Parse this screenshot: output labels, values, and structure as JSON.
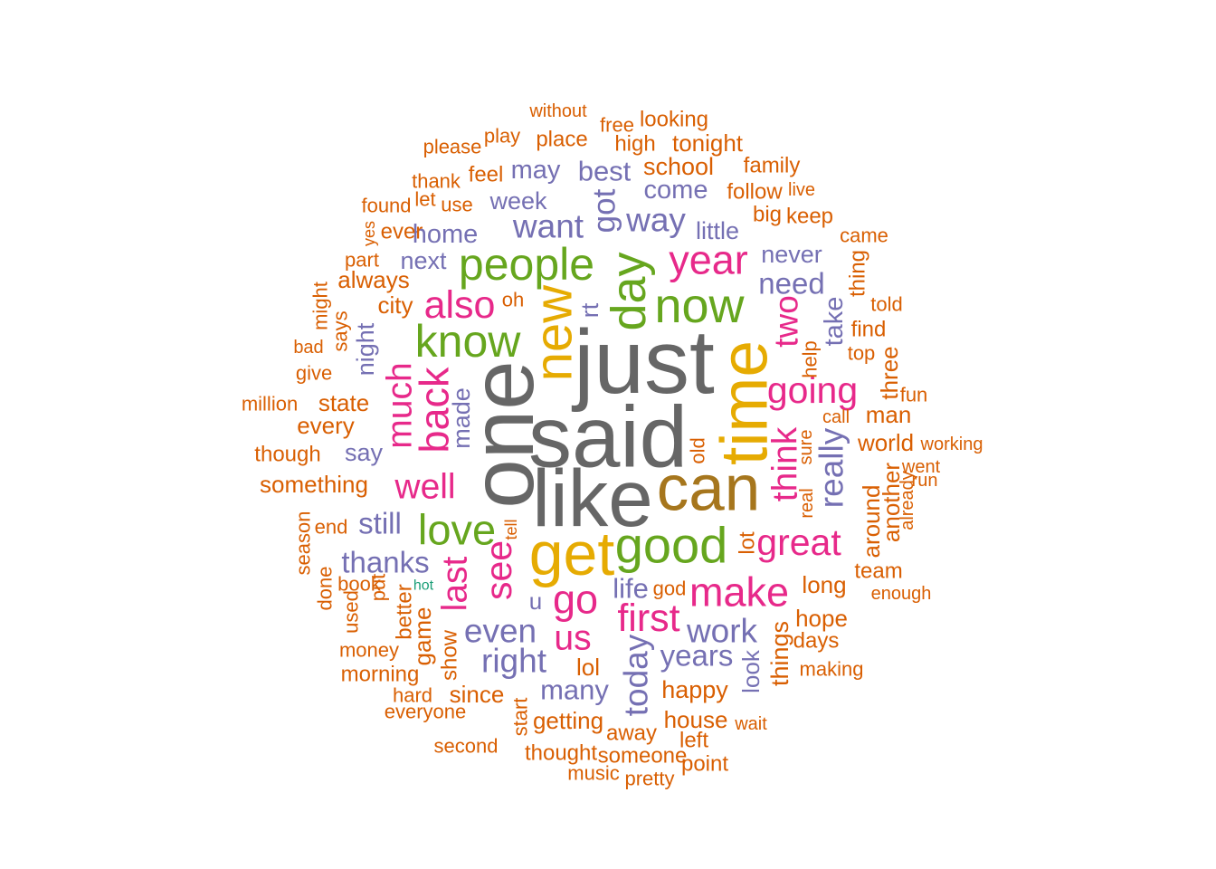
{
  "chart_data": {
    "type": "wordcloud",
    "palette": [
      "#1B9E77",
      "#D95F02",
      "#7570B3",
      "#E7298A",
      "#66A61E",
      "#E6AB02",
      "#A6761D",
      "#666666"
    ],
    "words": [
      {
        "text": "just",
        "value": 100,
        "color": "#666666",
        "rot": 0
      },
      {
        "text": "said",
        "value": 96,
        "color": "#666666",
        "rot": 0
      },
      {
        "text": "one",
        "value": 98,
        "color": "#666666",
        "rot": -90
      },
      {
        "text": "like",
        "value": 88,
        "color": "#666666",
        "rot": 0
      },
      {
        "text": "can",
        "value": 70,
        "color": "#A6761D",
        "rot": 0
      },
      {
        "text": "time",
        "value": 72,
        "color": "#E6AB02",
        "rot": -90
      },
      {
        "text": "get",
        "value": 66,
        "color": "#E6AB02",
        "rot": 0
      },
      {
        "text": "new",
        "value": 56,
        "color": "#E6AB02",
        "rot": -90
      },
      {
        "text": "good",
        "value": 54,
        "color": "#66A61E",
        "rot": 0
      },
      {
        "text": "day",
        "value": 52,
        "color": "#66A61E",
        "rot": -90
      },
      {
        "text": "now",
        "value": 52,
        "color": "#66A61E",
        "rot": 0
      },
      {
        "text": "people",
        "value": 48,
        "color": "#66A61E",
        "rot": 0
      },
      {
        "text": "know",
        "value": 48,
        "color": "#66A61E",
        "rot": 0
      },
      {
        "text": "love",
        "value": 44,
        "color": "#66A61E",
        "rot": 0
      },
      {
        "text": "year",
        "value": 42,
        "color": "#E7298A",
        "rot": 0
      },
      {
        "text": "back",
        "value": 42,
        "color": "#E7298A",
        "rot": -90
      },
      {
        "text": "also",
        "value": 40,
        "color": "#E7298A",
        "rot": 0
      },
      {
        "text": "make",
        "value": 42,
        "color": "#E7298A",
        "rot": 0
      },
      {
        "text": "go",
        "value": 42,
        "color": "#E7298A",
        "rot": 0
      },
      {
        "text": "first",
        "value": 40,
        "color": "#E7298A",
        "rot": 0
      },
      {
        "text": "great",
        "value": 38,
        "color": "#E7298A",
        "rot": 0
      },
      {
        "text": "going",
        "value": 38,
        "color": "#E7298A",
        "rot": 0
      },
      {
        "text": "much",
        "value": 36,
        "color": "#E7298A",
        "rot": -90
      },
      {
        "text": "see",
        "value": 38,
        "color": "#E7298A",
        "rot": -90
      },
      {
        "text": "us",
        "value": 36,
        "color": "#E7298A",
        "rot": 0
      },
      {
        "text": "think",
        "value": 36,
        "color": "#E7298A",
        "rot": -90
      },
      {
        "text": "two",
        "value": 34,
        "color": "#E7298A",
        "rot": -90
      },
      {
        "text": "well",
        "value": 36,
        "color": "#E7298A",
        "rot": 0
      },
      {
        "text": "last",
        "value": 36,
        "color": "#E7298A",
        "rot": -90
      },
      {
        "text": "want",
        "value": 34,
        "color": "#7570B3",
        "rot": 0
      },
      {
        "text": "way",
        "value": 34,
        "color": "#7570B3",
        "rot": 0
      },
      {
        "text": "got",
        "value": 32,
        "color": "#7570B3",
        "rot": -90
      },
      {
        "text": "really",
        "value": 34,
        "color": "#7570B3",
        "rot": -90
      },
      {
        "text": "right",
        "value": 34,
        "color": "#7570B3",
        "rot": 0
      },
      {
        "text": "even",
        "value": 34,
        "color": "#7570B3",
        "rot": 0
      },
      {
        "text": "work",
        "value": 34,
        "color": "#7570B3",
        "rot": 0
      },
      {
        "text": "today",
        "value": 34,
        "color": "#7570B3",
        "rot": -90
      },
      {
        "text": "years",
        "value": 30,
        "color": "#7570B3",
        "rot": 0
      },
      {
        "text": "still",
        "value": 30,
        "color": "#7570B3",
        "rot": 0
      },
      {
        "text": "thanks",
        "value": 30,
        "color": "#7570B3",
        "rot": 0
      },
      {
        "text": "many",
        "value": 28,
        "color": "#7570B3",
        "rot": 0
      },
      {
        "text": "need",
        "value": 30,
        "color": "#7570B3",
        "rot": 0
      },
      {
        "text": "take",
        "value": 26,
        "color": "#7570B3",
        "rot": -90
      },
      {
        "text": "life",
        "value": 28,
        "color": "#7570B3",
        "rot": 0
      },
      {
        "text": "best",
        "value": 28,
        "color": "#7570B3",
        "rot": 0
      },
      {
        "text": "may",
        "value": 26,
        "color": "#7570B3",
        "rot": 0
      },
      {
        "text": "come",
        "value": 26,
        "color": "#7570B3",
        "rot": 0
      },
      {
        "text": "home",
        "value": 26,
        "color": "#7570B3",
        "rot": 0
      },
      {
        "text": "week",
        "value": 24,
        "color": "#7570B3",
        "rot": 0
      },
      {
        "text": "never",
        "value": 24,
        "color": "#7570B3",
        "rot": 0
      },
      {
        "text": "made",
        "value": 24,
        "color": "#7570B3",
        "rot": -90
      },
      {
        "text": "night",
        "value": 24,
        "color": "#7570B3",
        "rot": -90
      },
      {
        "text": "say",
        "value": 24,
        "color": "#7570B3",
        "rot": 0
      },
      {
        "text": "next",
        "value": 24,
        "color": "#7570B3",
        "rot": 0
      },
      {
        "text": "little",
        "value": 24,
        "color": "#7570B3",
        "rot": 0
      },
      {
        "text": "look",
        "value": 22,
        "color": "#7570B3",
        "rot": -90
      },
      {
        "text": "u",
        "value": 22,
        "color": "#7570B3",
        "rot": 0
      },
      {
        "text": "rt",
        "value": 24,
        "color": "#7570B3",
        "rot": -90
      },
      {
        "text": "school",
        "value": 24,
        "color": "#D95F02",
        "rot": 0
      },
      {
        "text": "things",
        "value": 24,
        "color": "#D95F02",
        "rot": -90
      },
      {
        "text": "happy",
        "value": 24,
        "color": "#D95F02",
        "rot": 0
      },
      {
        "text": "long",
        "value": 22,
        "color": "#D95F02",
        "rot": 0
      },
      {
        "text": "game",
        "value": 22,
        "color": "#D95F02",
        "rot": -90
      },
      {
        "text": "lol",
        "value": 22,
        "color": "#D95F02",
        "rot": 0
      },
      {
        "text": "something",
        "value": 22,
        "color": "#D95F02",
        "rot": 0
      },
      {
        "text": "always",
        "value": 22,
        "color": "#D95F02",
        "rot": 0
      },
      {
        "text": "city",
        "value": 22,
        "color": "#D95F02",
        "rot": 0
      },
      {
        "text": "state",
        "value": 22,
        "color": "#D95F02",
        "rot": 0
      },
      {
        "text": "every",
        "value": 22,
        "color": "#D95F02",
        "rot": 0
      },
      {
        "text": "hope",
        "value": 22,
        "color": "#D95F02",
        "rot": 0
      },
      {
        "text": "world",
        "value": 22,
        "color": "#D95F02",
        "rot": 0
      },
      {
        "text": "around",
        "value": 22,
        "color": "#D95F02",
        "rot": -90
      },
      {
        "text": "another",
        "value": 22,
        "color": "#D95F02",
        "rot": -90
      },
      {
        "text": "three",
        "value": 22,
        "color": "#D95F02",
        "rot": -90
      },
      {
        "text": "man",
        "value": 22,
        "color": "#D95F02",
        "rot": 0
      },
      {
        "text": "team",
        "value": 20,
        "color": "#D95F02",
        "rot": 0
      },
      {
        "text": "getting",
        "value": 22,
        "color": "#D95F02",
        "rot": 0
      },
      {
        "text": "house",
        "value": 22,
        "color": "#D95F02",
        "rot": 0
      },
      {
        "text": "since",
        "value": 22,
        "color": "#D95F02",
        "rot": 0
      },
      {
        "text": "show",
        "value": 20,
        "color": "#D95F02",
        "rot": -90
      },
      {
        "text": "better",
        "value": 20,
        "color": "#D95F02",
        "rot": -90
      },
      {
        "text": "feel",
        "value": 20,
        "color": "#D95F02",
        "rot": 0
      },
      {
        "text": "family",
        "value": 20,
        "color": "#D95F02",
        "rot": 0
      },
      {
        "text": "follow",
        "value": 20,
        "color": "#D95F02",
        "rot": 0
      },
      {
        "text": "big",
        "value": 20,
        "color": "#D95F02",
        "rot": 0
      },
      {
        "text": "keep",
        "value": 20,
        "color": "#D95F02",
        "rot": 0
      },
      {
        "text": "tonight",
        "value": 22,
        "color": "#D95F02",
        "rot": 0
      },
      {
        "text": "high",
        "value": 20,
        "color": "#D95F02",
        "rot": 0
      },
      {
        "text": "place",
        "value": 20,
        "color": "#D95F02",
        "rot": 0
      },
      {
        "text": "looking",
        "value": 20,
        "color": "#D95F02",
        "rot": 0
      },
      {
        "text": "thing",
        "value": 20,
        "color": "#D95F02",
        "rot": -90
      },
      {
        "text": "find",
        "value": 20,
        "color": "#D95F02",
        "rot": 0
      },
      {
        "text": "help",
        "value": 18,
        "color": "#D95F02",
        "rot": -90
      },
      {
        "text": "top",
        "value": 18,
        "color": "#D95F02",
        "rot": 0
      },
      {
        "text": "fun",
        "value": 18,
        "color": "#D95F02",
        "rot": 0
      },
      {
        "text": "told",
        "value": 18,
        "color": "#D95F02",
        "rot": 0
      },
      {
        "text": "morning",
        "value": 20,
        "color": "#D95F02",
        "rot": 0
      },
      {
        "text": "money",
        "value": 18,
        "color": "#D95F02",
        "rot": 0
      },
      {
        "text": "days",
        "value": 20,
        "color": "#D95F02",
        "rot": 0
      },
      {
        "text": "making",
        "value": 18,
        "color": "#D95F02",
        "rot": 0
      },
      {
        "text": "thought",
        "value": 20,
        "color": "#D95F02",
        "rot": 0
      },
      {
        "text": "someone",
        "value": 20,
        "color": "#D95F02",
        "rot": 0
      },
      {
        "text": "away",
        "value": 20,
        "color": "#D95F02",
        "rot": 0
      },
      {
        "text": "left",
        "value": 20,
        "color": "#D95F02",
        "rot": 0
      },
      {
        "text": "point",
        "value": 20,
        "color": "#D95F02",
        "rot": 0
      },
      {
        "text": "music",
        "value": 18,
        "color": "#D95F02",
        "rot": 0
      },
      {
        "text": "pretty",
        "value": 18,
        "color": "#D95F02",
        "rot": 0
      },
      {
        "text": "second",
        "value": 18,
        "color": "#D95F02",
        "rot": 0
      },
      {
        "text": "start",
        "value": 18,
        "color": "#D95F02",
        "rot": -90
      },
      {
        "text": "hard",
        "value": 18,
        "color": "#D95F02",
        "rot": 0
      },
      {
        "text": "everyone",
        "value": 18,
        "color": "#D95F02",
        "rot": 0
      },
      {
        "text": "god",
        "value": 18,
        "color": "#D95F02",
        "rot": 0
      },
      {
        "text": "old",
        "value": 18,
        "color": "#D95F02",
        "rot": -90
      },
      {
        "text": "lot",
        "value": 20,
        "color": "#D95F02",
        "rot": -90
      },
      {
        "text": "put",
        "value": 18,
        "color": "#D95F02",
        "rot": -90
      },
      {
        "text": "book",
        "value": 18,
        "color": "#D95F02",
        "rot": 0
      },
      {
        "text": "done",
        "value": 18,
        "color": "#D95F02",
        "rot": -90
      },
      {
        "text": "used",
        "value": 18,
        "color": "#D95F02",
        "rot": -90
      },
      {
        "text": "end",
        "value": 18,
        "color": "#D95F02",
        "rot": 0
      },
      {
        "text": "season",
        "value": 18,
        "color": "#D95F02",
        "rot": -90
      },
      {
        "text": "million",
        "value": 18,
        "color": "#D95F02",
        "rot": 0
      },
      {
        "text": "give",
        "value": 18,
        "color": "#D95F02",
        "rot": 0
      },
      {
        "text": "though",
        "value": 20,
        "color": "#D95F02",
        "rot": 0
      },
      {
        "text": "says",
        "value": 18,
        "color": "#D95F02",
        "rot": -90
      },
      {
        "text": "part",
        "value": 18,
        "color": "#D95F02",
        "rot": 0
      },
      {
        "text": "might",
        "value": 18,
        "color": "#D95F02",
        "rot": -90
      },
      {
        "text": "found",
        "value": 18,
        "color": "#D95F02",
        "rot": 0
      },
      {
        "text": "ever",
        "value": 20,
        "color": "#D95F02",
        "rot": 0
      },
      {
        "text": "use",
        "value": 18,
        "color": "#D95F02",
        "rot": 0
      },
      {
        "text": "thank",
        "value": 18,
        "color": "#D95F02",
        "rot": 0
      },
      {
        "text": "let",
        "value": 18,
        "color": "#D95F02",
        "rot": 0
      },
      {
        "text": "please",
        "value": 18,
        "color": "#D95F02",
        "rot": 0
      },
      {
        "text": "play",
        "value": 18,
        "color": "#D95F02",
        "rot": 0
      },
      {
        "text": "free",
        "value": 18,
        "color": "#D95F02",
        "rot": 0
      },
      {
        "text": "without",
        "value": 16,
        "color": "#D95F02",
        "rot": 0
      },
      {
        "text": "came",
        "value": 18,
        "color": "#D95F02",
        "rot": 0
      },
      {
        "text": "call",
        "value": 16,
        "color": "#D95F02",
        "rot": 0
      },
      {
        "text": "live",
        "value": 16,
        "color": "#D95F02",
        "rot": 0
      },
      {
        "text": "went",
        "value": 16,
        "color": "#D95F02",
        "rot": 0
      },
      {
        "text": "run",
        "value": 16,
        "color": "#D95F02",
        "rot": 0
      },
      {
        "text": "already",
        "value": 16,
        "color": "#D95F02",
        "rot": -90
      },
      {
        "text": "enough",
        "value": 16,
        "color": "#D95F02",
        "rot": 0
      },
      {
        "text": "working",
        "value": 16,
        "color": "#D95F02",
        "rot": 0
      },
      {
        "text": "oh",
        "value": 18,
        "color": "#D95F02",
        "rot": 0
      },
      {
        "text": "real",
        "value": 16,
        "color": "#D95F02",
        "rot": -90
      },
      {
        "text": "sure",
        "value": 16,
        "color": "#D95F02",
        "rot": -90
      },
      {
        "text": "wait",
        "value": 16,
        "color": "#D95F02",
        "rot": 0
      },
      {
        "text": "yes",
        "value": 14,
        "color": "#D95F02",
        "rot": -90
      },
      {
        "text": "tell",
        "value": 14,
        "color": "#D95F02",
        "rot": -90
      },
      {
        "text": "hot",
        "value": 12,
        "color": "#1B9E77",
        "rot": 0
      },
      {
        "text": "bad",
        "value": 16,
        "color": "#D95F02",
        "rot": 0
      }
    ]
  }
}
